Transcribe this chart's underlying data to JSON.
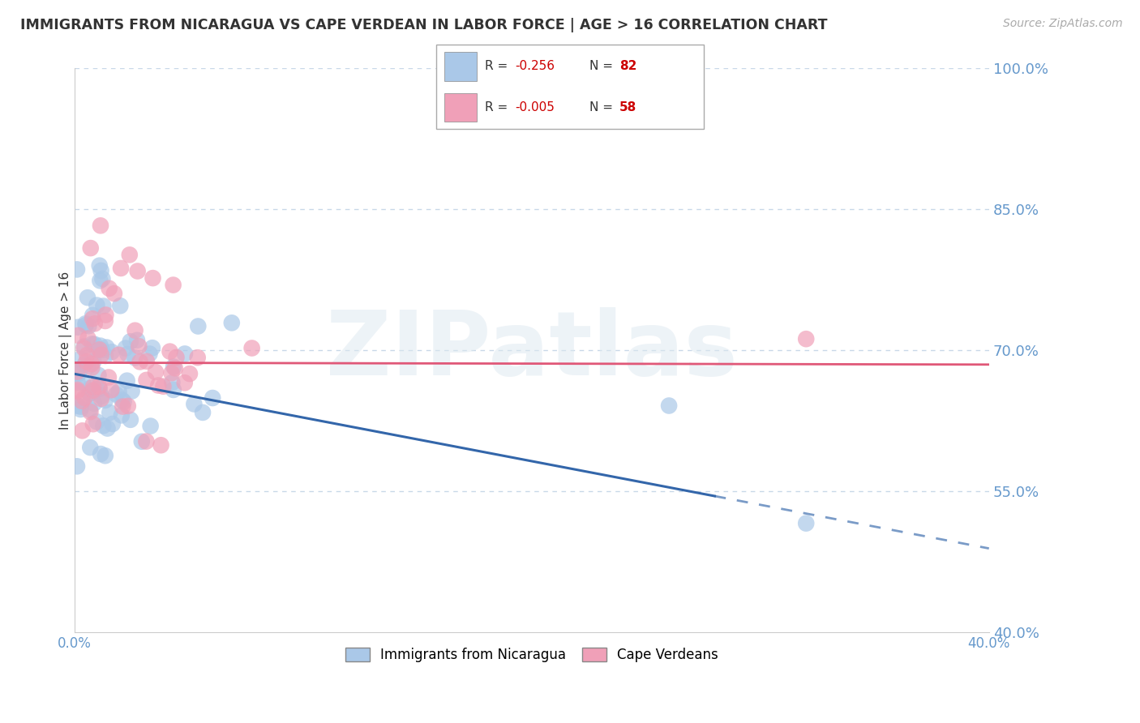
{
  "title": "IMMIGRANTS FROM NICARAGUA VS CAPE VERDEAN IN LABOR FORCE | AGE > 16 CORRELATION CHART",
  "source": "Source: ZipAtlas.com",
  "ylabel": "In Labor Force | Age > 16",
  "xlim": [
    0.0,
    0.4
  ],
  "ylim": [
    0.4,
    1.0
  ],
  "background_color": "#ffffff",
  "grid_color": "#c8d8e8",
  "title_color": "#333333",
  "axis_color": "#6699cc",
  "watermark": "ZIPatlas",
  "nicaragua": {
    "R": -0.256,
    "N": 82,
    "color": "#aac8e8",
    "line_color": "#3366aa",
    "label": "Immigrants from Nicaragua"
  },
  "cape_verdean": {
    "R": -0.005,
    "N": 58,
    "color": "#f0a0b8",
    "line_color": "#e05878",
    "label": "Cape Verdeans"
  }
}
